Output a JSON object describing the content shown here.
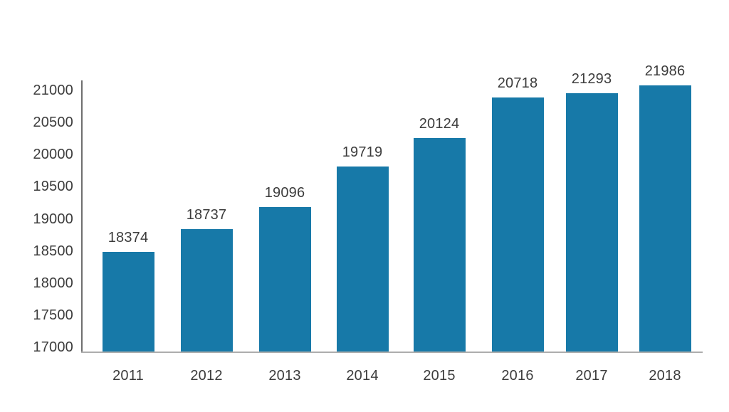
{
  "chart_data": {
    "type": "bar",
    "title": "",
    "xlabel": "",
    "ylabel": "",
    "categories": [
      "2011",
      "2012",
      "2013",
      "2014",
      "2015",
      "2016",
      "2017",
      "2018"
    ],
    "values": [
      18374,
      18737,
      19096,
      19719,
      20124,
      20718,
      21293,
      21986
    ],
    "data_labels": [
      "18374",
      "18737",
      "19096",
      "19719",
      "20124",
      "20718",
      "21293",
      "21986"
    ],
    "yticks": [
      "21000",
      "20500",
      "20000",
      "19500",
      "19000",
      "18500",
      "18000",
      "17500",
      "17000"
    ],
    "ylim": [
      17000,
      21000
    ],
    "ytick_step": 500,
    "grid": false,
    "legend": null,
    "data_labels_shown": true,
    "colors": {
      "bar": "#1779a8",
      "text": "#3c3c3c",
      "y_axis_line": "#6f6f6f",
      "x_axis_line": "#adadad",
      "background": "#ffffff"
    }
  }
}
